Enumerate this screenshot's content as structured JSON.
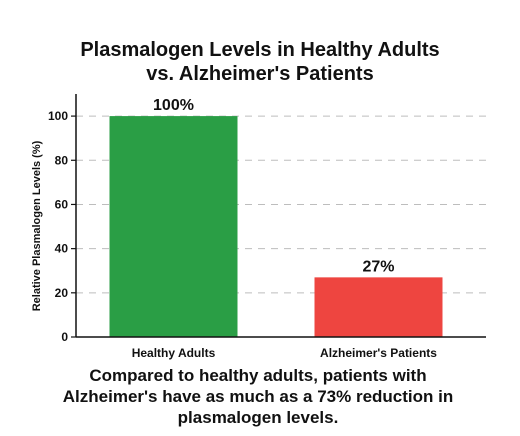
{
  "chart_data": {
    "type": "bar",
    "title_lines": [
      "Plasmalogen Levels in Healthy Adults",
      "vs. Alzheimer's Patients"
    ],
    "xlabel": "",
    "ylabel": "Relative Plasmalogen Levels (%)",
    "categories": [
      "Healthy Adults",
      "Alzheimer's Patients"
    ],
    "values": [
      100,
      27
    ],
    "data_labels": [
      "100%",
      "27%"
    ],
    "bar_colors": [
      "#2a9e45",
      "#ee4540"
    ],
    "ylim": [
      0,
      110
    ],
    "yticks": [
      0,
      20,
      40,
      60,
      80,
      100
    ],
    "grid": true,
    "grid_style": "dashed",
    "legend": "none"
  },
  "caption_lines": [
    "Compared to healthy adults, patients with",
    "Alzheimer's have as much as a 73% reduction in",
    "plasmalogen levels."
  ]
}
